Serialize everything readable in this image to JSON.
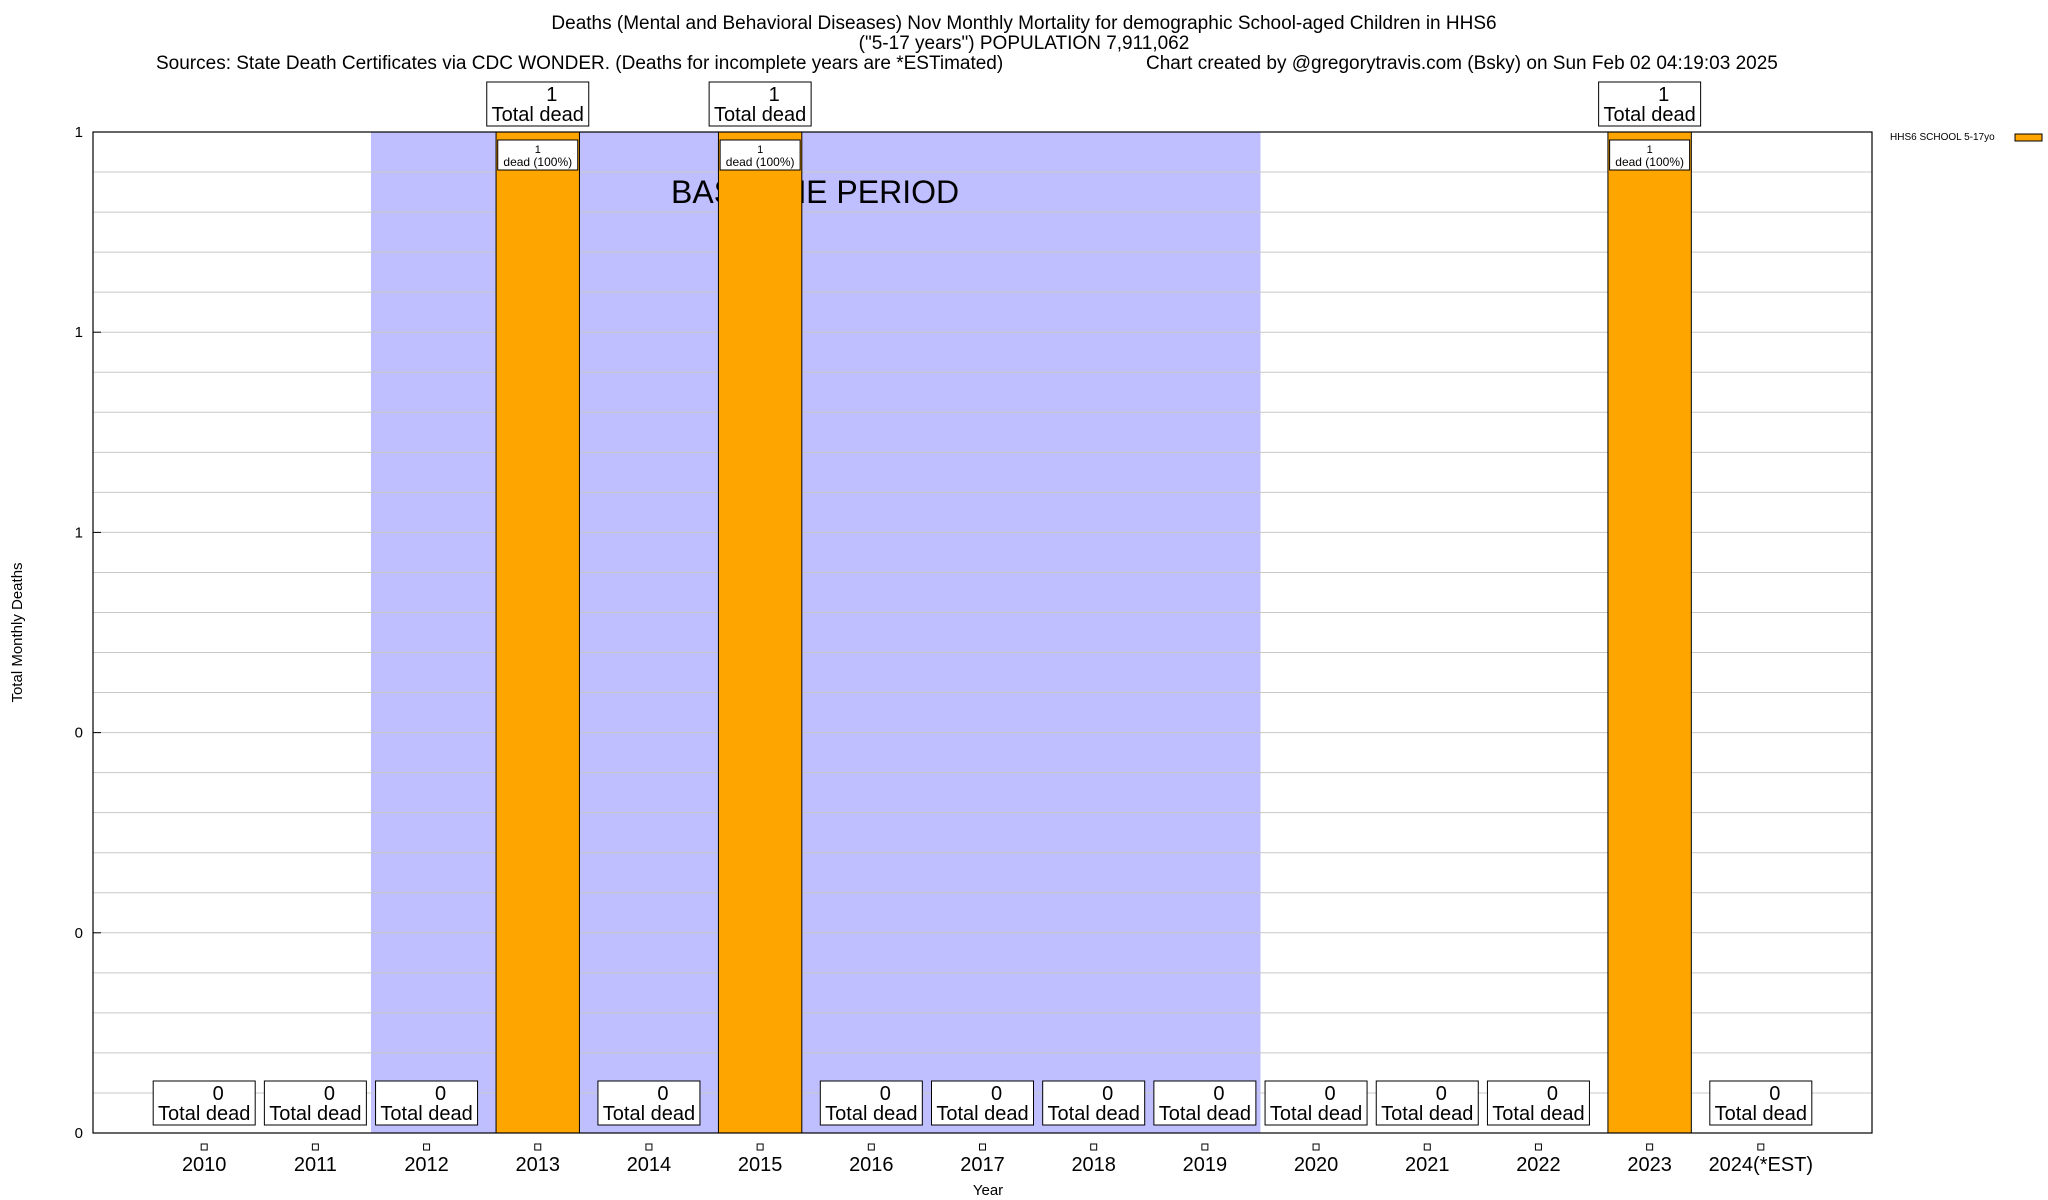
{
  "header": {
    "title_line1": "Deaths (Mental and Behavioral Diseases) Nov Monthly Mortality for demographic School-aged Children in HHS6",
    "title_line2": "(\"5-17 years\") POPULATION 7,911,062",
    "sources": "Sources: State Death Certificates via CDC WONDER. (Deaths for incomplete years are *ESTimated)",
    "credit": "Chart created by @gregorytravis.com (Bsky) on Sun Feb 02 04:19:03 2025"
  },
  "chart_data": {
    "type": "bar",
    "xlabel": "Year",
    "ylabel": "Total Monthly Deaths",
    "ylim": [
      0,
      1
    ],
    "y_tick_labels": [
      "0",
      "0",
      "0",
      "1",
      "1",
      "1"
    ],
    "categories": [
      "2010",
      "2011",
      "2012",
      "2013",
      "2014",
      "2015",
      "2016",
      "2017",
      "2018",
      "2019",
      "2020",
      "2021",
      "2022",
      "2023",
      "2024(*EST)"
    ],
    "series": [
      {
        "name": "HHS6 SCHOOL 5-17yo",
        "color": "#FFA500",
        "values": [
          0,
          0,
          0,
          1,
          0,
          1,
          0,
          0,
          0,
          0,
          0,
          0,
          0,
          1,
          0
        ]
      }
    ],
    "total_label_text": "Total dead",
    "inner_label_text": "dead (100%)",
    "baseline_period": {
      "label": "BASELINE PERIOD",
      "start": "2012",
      "end": "2019",
      "color": "#BFBFFF"
    },
    "grid": true,
    "legend_position": "top-right"
  }
}
